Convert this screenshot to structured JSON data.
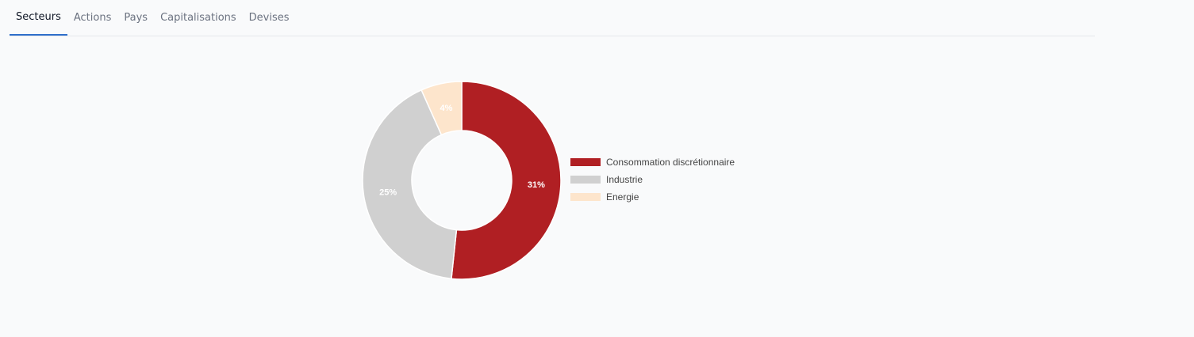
{
  "tabs": [
    {
      "label": "Secteurs",
      "active": true
    },
    {
      "label": "Actions",
      "active": false
    },
    {
      "label": "Pays",
      "active": false
    },
    {
      "label": "Capitalisations",
      "active": false
    },
    {
      "label": "Devises",
      "active": false
    }
  ],
  "chart_data": {
    "type": "pie",
    "variant": "donut",
    "title": "",
    "legend_position": "right",
    "slices": [
      {
        "name": "Consommation discrétionnaire",
        "value": 31,
        "label": "31%",
        "color": "#b01f23"
      },
      {
        "name": "Industrie",
        "value": 25,
        "label": "25%",
        "color": "#d0d0d0"
      },
      {
        "name": "Energie",
        "value": 4,
        "label": "4%",
        "color": "#fde5cc"
      }
    ]
  }
}
